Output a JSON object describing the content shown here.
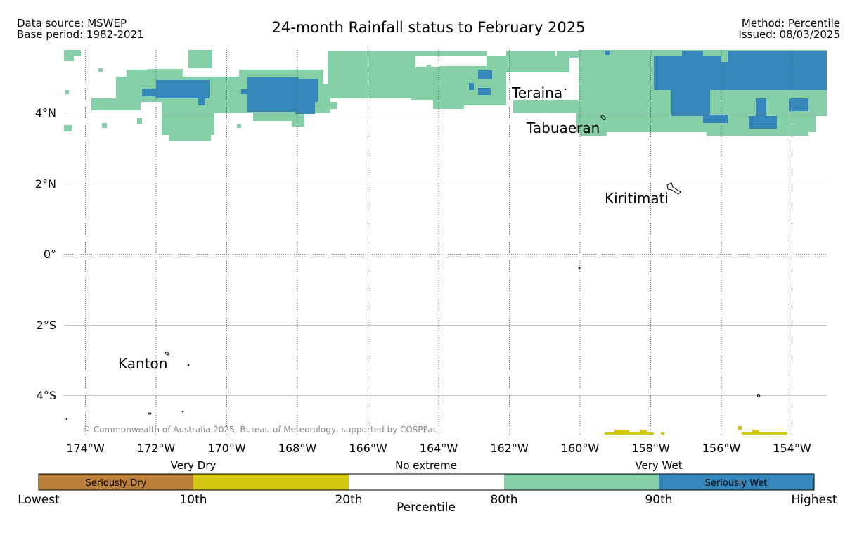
{
  "header": {
    "source_line": "Data source: MSWEP",
    "base_line": "Base period: 1982-2021",
    "title": "24-month Rainfall status to February 2025",
    "method_line": "Method: Percentile",
    "issued_line": "Issued: 08/03/2025"
  },
  "map": {
    "lat_labels": [
      "4°N",
      "2°N",
      "0°",
      "2°S",
      "4°S"
    ],
    "lon_labels": [
      "174°W",
      "172°W",
      "170°W",
      "168°W",
      "166°W",
      "164°W",
      "162°W",
      "160°W",
      "158°W",
      "156°W",
      "154°W"
    ],
    "places": [
      "Teraina",
      "Tabuaeran",
      "Kiritimati",
      "Kanton"
    ],
    "copyright": "© Commonwealth of Australia 2025, Bureau of Meteorology, supported by COSPPac",
    "colors": {
      "very_wet": "#84cfa5",
      "seriously_wet": "#3486bb",
      "very_dry": "#d3c713",
      "seriously_dry": "#bb7f3c",
      "no_extreme": "#ffffff"
    }
  },
  "legend": {
    "group_labels": [
      "Very Dry",
      "No extreme",
      "Very Wet"
    ],
    "box_labels": [
      "Seriously Dry",
      "",
      "",
      "",
      "Seriously Wet"
    ],
    "tick_labels": [
      "Lowest",
      "10th",
      "20th",
      "80th",
      "90th",
      "Highest"
    ],
    "axis_title": "Percentile"
  }
}
